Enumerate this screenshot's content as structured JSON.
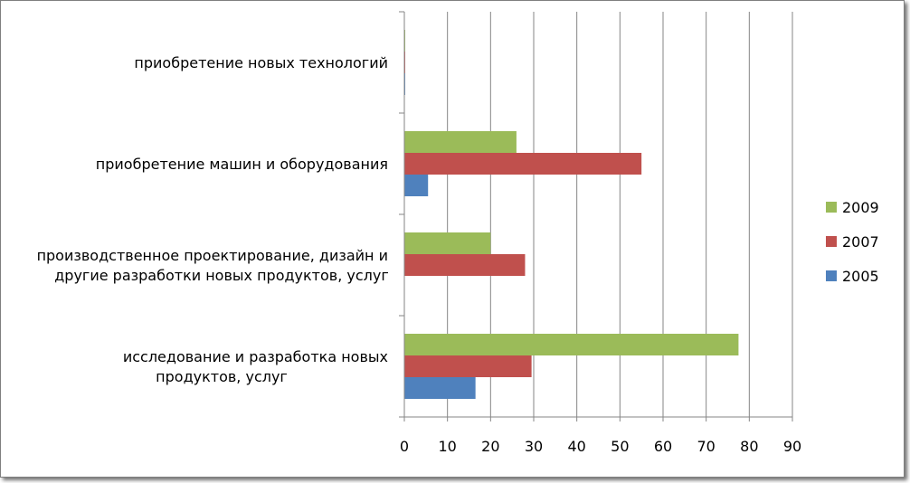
{
  "chart_data": {
    "type": "bar",
    "orientation": "horizontal",
    "categories": [
      [
        "исследование и разработка новых",
        "продуктов, услуг"
      ],
      [
        "производственное проектирование,  дизайн и",
        "другие разработки новых продуктов, услуг"
      ],
      [
        "приобретение  машин и  оборудования"
      ],
      [
        "приобретение новых технологий"
      ]
    ],
    "series": [
      {
        "name": "2005",
        "color": "#4f81bd",
        "values": [
          16.5,
          0,
          5.5,
          0.2
        ]
      },
      {
        "name": "2007",
        "color": "#c0504d",
        "values": [
          29.5,
          28,
          55,
          0.2
        ]
      },
      {
        "name": "2009",
        "color": "#9bbb59",
        "values": [
          77.5,
          20,
          26,
          0.2
        ]
      }
    ],
    "xlim": [
      0,
      90
    ],
    "xticks": [
      0,
      10,
      20,
      30,
      40,
      50,
      60,
      70,
      80,
      90
    ],
    "grid": "vertical",
    "legend": "right",
    "legend_order": [
      "2009",
      "2007",
      "2005"
    ],
    "title": "",
    "xlabel": "",
    "ylabel": ""
  }
}
